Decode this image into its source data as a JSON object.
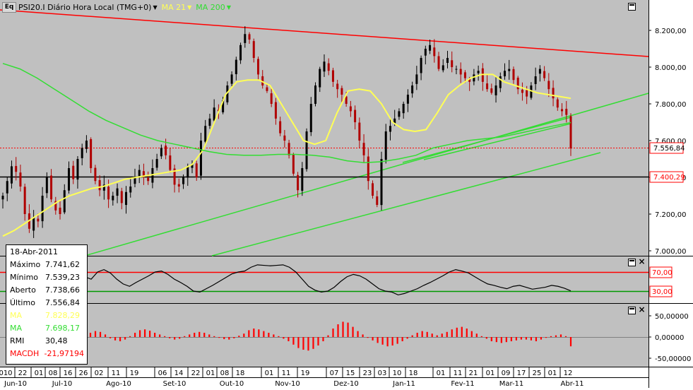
{
  "header": {
    "logo": "Eq",
    "instrument": "PSI20.I Diário Hora Local (TMG+0)",
    "ma21": "MA 21",
    "ma200": "MA 200"
  },
  "colors": {
    "panel_bg": "#c0c0c0",
    "trend_red": "#ff0000",
    "trend_green": "#33dd33",
    "ma21": "#ffff55",
    "ma200": "#33dd33",
    "candle_up": "#000000",
    "candle_down": "#b00000",
    "macd": "#ff0000"
  },
  "price_axis": {
    "ticks": [
      "8.200,00",
      "8.000,00",
      "7.800,00",
      "7.600,00",
      "7.400,00",
      "7.200,00",
      "7.000,00"
    ],
    "last_price_label": "7.556,84",
    "support_label": "7.400,29"
  },
  "rsi_axis": {
    "upper": "70,00",
    "lower": "30,00"
  },
  "macd_axis": {
    "ticks": [
      "50,00000",
      "0,00000",
      "-50,00000"
    ]
  },
  "x_axis": {
    "day_ticks": [
      "010",
      "22",
      "01",
      "08",
      "16",
      "26",
      "02",
      "11",
      "19",
      "06",
      "14",
      "22",
      "01",
      "08",
      "18",
      "01",
      "11",
      "19",
      "07",
      "15",
      "23",
      "03",
      "10",
      "18",
      "01",
      "11",
      "21",
      "01",
      "09",
      "17",
      "25",
      "01",
      "12"
    ],
    "month_ticks": [
      "Jun-10",
      "Jul-10",
      "Ago-10",
      "Set-10",
      "Out-10",
      "Nov-10",
      "Dez-10",
      "Jan-11",
      "Fev-11",
      "Mar-11",
      "Abr-11"
    ]
  },
  "infobox": {
    "date": "18-Abr-2011",
    "rows": [
      {
        "label": "Máximo",
        "value": "7.741,62",
        "color": "#000000"
      },
      {
        "label": "Mínimo",
        "value": "7.539,23",
        "color": "#000000"
      },
      {
        "label": "Aberto",
        "value": "7.738,66",
        "color": "#000000"
      },
      {
        "label": "Último",
        "value": "7.556,84",
        "color": "#000000"
      },
      {
        "label": "MA",
        "value": "7.828,29",
        "color": "#ffff55"
      },
      {
        "label": "MA",
        "value": "7.698,17",
        "color": "#33dd33"
      },
      {
        "label": "RMI",
        "value": "30,48",
        "color": "#000000"
      },
      {
        "label": "MACDH",
        "value": "-21,97194",
        "color": "#ff0000"
      }
    ]
  },
  "chart_data": [
    {
      "type": "candlestick",
      "title": "PSI20.I Diário Hora Local (TMG+0)",
      "ylim": [
        6960,
        8310
      ],
      "x_range": [
        "2010-06-10",
        "2011-04-18"
      ],
      "series_close": [
        7300,
        7380,
        7460,
        7430,
        7350,
        7200,
        7120,
        7180,
        7160,
        7300,
        7400,
        7280,
        7220,
        7200,
        7330,
        7450,
        7390,
        7500,
        7560,
        7600,
        7450,
        7380,
        7330,
        7360,
        7280,
        7300,
        7340,
        7260,
        7320,
        7350,
        7400,
        7440,
        7400,
        7380,
        7450,
        7500,
        7560,
        7520,
        7440,
        7360,
        7350,
        7400,
        7460,
        7470,
        7400,
        7600,
        7680,
        7720,
        7780,
        7760,
        7820,
        7900,
        7960,
        8040,
        8120,
        8180,
        8150,
        8050,
        7960,
        7900,
        7870,
        7800,
        7720,
        7640,
        7600,
        7520,
        7420,
        7330,
        7450,
        7650,
        7800,
        7900,
        7990,
        8030,
        7980,
        7920,
        7880,
        7850,
        7800,
        7760,
        7700,
        7600,
        7520,
        7380,
        7300,
        7250,
        7500,
        7650,
        7680,
        7720,
        7760,
        7800,
        7850,
        7900,
        7960,
        8050,
        8100,
        8120,
        8060,
        7990,
        8010,
        8050,
        8000,
        7990,
        7960,
        7940,
        7920,
        7960,
        7980,
        7920,
        7880,
        7860,
        7900,
        7950,
        7980,
        7990,
        7930,
        7880,
        7860,
        7840,
        7900,
        7950,
        7990,
        7940,
        7880,
        7830,
        7780,
        7760,
        7740,
        7557
      ],
      "series": [
        {
          "name": "MA 21",
          "values": [
            7080,
            7110,
            7150,
            7190,
            7230,
            7270,
            7300,
            7320,
            7340,
            7350,
            7370,
            7390,
            7400,
            7410,
            7420,
            7430,
            7440,
            7470,
            7550,
            7700,
            7850,
            7920,
            7930,
            7930,
            7900,
            7800,
            7700,
            7600,
            7580,
            7600,
            7750,
            7870,
            7880,
            7870,
            7800,
            7700,
            7660,
            7650,
            7660,
            7750,
            7850,
            7900,
            7940,
            7960,
            7960,
            7920,
            7900,
            7880,
            7860,
            7850,
            7840,
            7830
          ]
        },
        {
          "name": "MA 200",
          "values": [
            8020,
            7990,
            7940,
            7880,
            7820,
            7760,
            7710,
            7670,
            7630,
            7600,
            7580,
            7560,
            7540,
            7525,
            7520,
            7520,
            7525,
            7525,
            7520,
            7510,
            7490,
            7480,
            7485,
            7500,
            7520,
            7560,
            7580,
            7600,
            7610,
            7620,
            7640,
            7660,
            7680,
            7698
          ]
        }
      ],
      "annotations": [
        "7.556,84",
        "7.400,29"
      ]
    },
    {
      "type": "line",
      "series": [
        {
          "name": "RMI",
          "values": [
            60,
            55,
            70,
            75,
            68,
            55,
            45,
            40,
            48,
            55,
            62,
            70,
            72,
            65,
            55,
            48,
            40,
            30,
            28,
            35,
            42,
            50,
            58,
            66,
            70,
            72,
            80,
            85,
            84,
            83,
            84,
            85,
            80,
            70,
            55,
            40,
            32,
            28,
            30,
            38,
            50,
            60,
            65,
            62,
            55,
            45,
            35,
            30,
            28,
            22,
            25,
            30,
            35,
            42,
            48,
            55,
            62,
            70,
            75,
            72,
            68,
            60,
            52,
            45,
            42,
            38,
            35,
            40,
            42,
            38,
            34,
            36,
            38,
            42,
            40,
            36,
            30.48
          ]
        }
      ],
      "ylim": [
        10,
        90
      ],
      "reference_lines": [
        70,
        30
      ]
    },
    {
      "type": "bar",
      "series": [
        {
          "name": "MACDH",
          "values": [
            10,
            14,
            12,
            6,
            -3,
            -8,
            -10,
            -6,
            2,
            10,
            16,
            18,
            15,
            10,
            6,
            2,
            -3,
            -6,
            -4,
            2,
            6,
            10,
            12,
            10,
            6,
            2,
            -2,
            -5,
            -6,
            -3,
            3,
            8,
            16,
            20,
            18,
            14,
            10,
            6,
            2,
            -4,
            -10,
            -18,
            -26,
            -30,
            -32,
            -28,
            -20,
            -10,
            4,
            20,
            30,
            36,
            34,
            24,
            14,
            6,
            -2,
            -8,
            -14,
            -18,
            -22,
            -20,
            -16,
            -10,
            -4,
            4,
            10,
            14,
            12,
            8,
            4,
            8,
            12,
            18,
            22,
            24,
            20,
            14,
            8,
            2,
            -4,
            -10,
            -12,
            -14,
            -12,
            -10,
            -8,
            -6,
            -6,
            -8,
            -10,
            -6,
            -2,
            2,
            4,
            6,
            2,
            -21.97
          ]
        }
      ],
      "ylim": [
        -65,
        55
      ]
    }
  ]
}
